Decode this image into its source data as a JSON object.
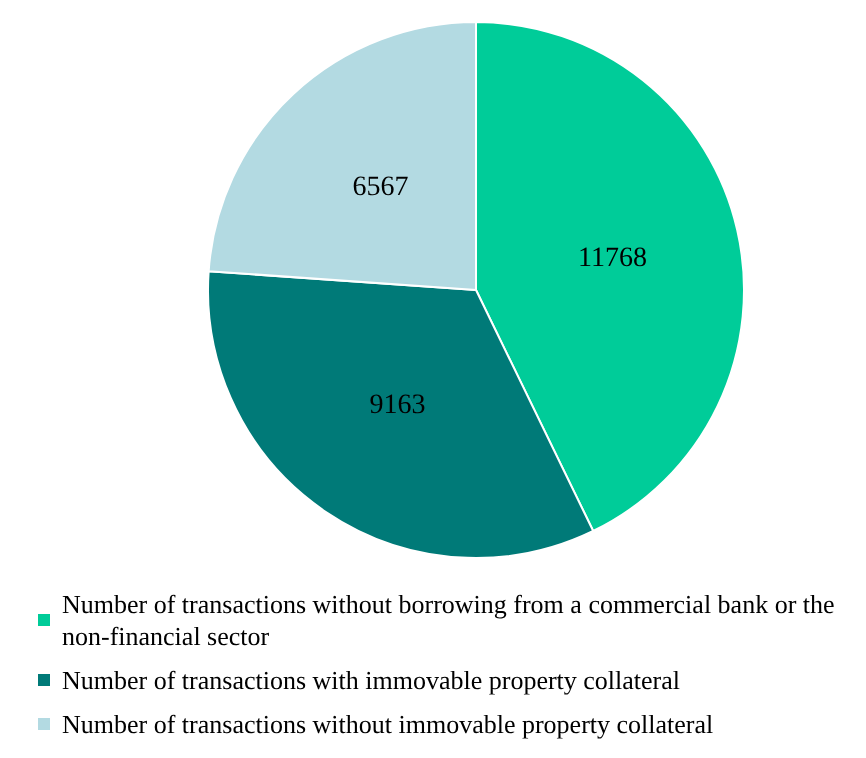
{
  "chart_data": {
    "type": "pie",
    "categories": [
      "Number of transactions without borrowing from a commercial bank or the non-financial sector",
      "Number of transactions with immovable property collateral",
      "Number of transactions without immovable property collateral"
    ],
    "values": [
      11768,
      9163,
      6567
    ],
    "colors": [
      "#00cc99",
      "#007a78",
      "#b3dae2"
    ],
    "data_labels": true,
    "legend": "bottom"
  }
}
